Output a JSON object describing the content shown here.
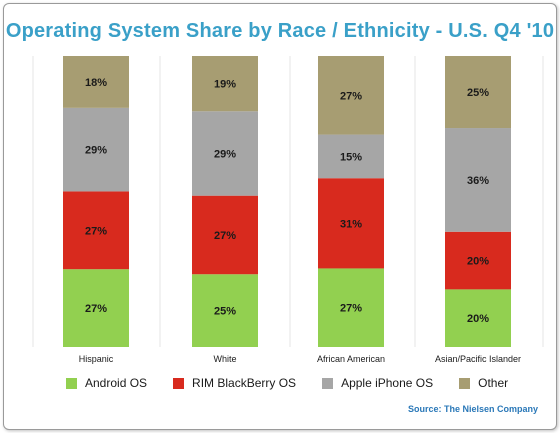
{
  "chart_data": {
    "type": "bar",
    "stacked": true,
    "title": "Operating System Share by Race / Ethnicity - U.S. Q4 '10",
    "categories": [
      "Hispanic",
      "White",
      "African American",
      "Asian/Pacific Islander"
    ],
    "series": [
      {
        "name": "Android OS",
        "color": "#92d050",
        "values": [
          27,
          25,
          27,
          20
        ]
      },
      {
        "name": "RIM BlackBerry OS",
        "color": "#d82a1e",
        "values": [
          27,
          27,
          31,
          20
        ]
      },
      {
        "name": "Apple iPhone OS",
        "color": "#a6a6a6",
        "values": [
          29,
          29,
          15,
          36
        ]
      },
      {
        "name": "Other",
        "color": "#a79d72",
        "values": [
          18,
          19,
          27,
          25
        ]
      }
    ],
    "value_suffix": "%",
    "ylim": [
      0,
      100
    ],
    "legend_position": "bottom",
    "grid": false,
    "source": "Source: The Nielsen Company"
  }
}
